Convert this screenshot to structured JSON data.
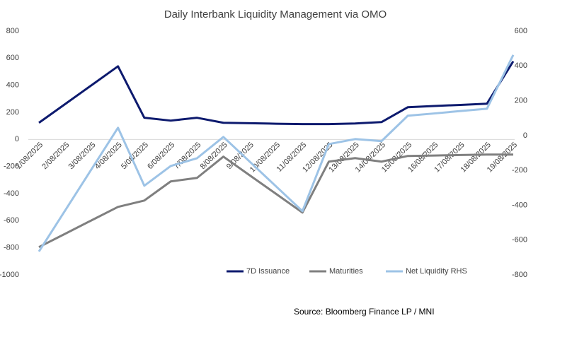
{
  "chart_data": {
    "type": "line",
    "title": "Daily Interbank Liquidity Management via OMO",
    "source": "Source: Bloomberg Finance LP / MNI",
    "categories": [
      "1/08/2025",
      "2/08/2025",
      "3/08/2025",
      "4/08/2025",
      "5/08/2025",
      "6/08/2025",
      "7/08/2025",
      "8/08/2025",
      "9/08/2025",
      "10/08/2025",
      "11/08/2025",
      "12/08/2025",
      "13/08/2025",
      "14/08/2025",
      "15/08/2025",
      "16/08/2025",
      "17/08/2025",
      "18/08/2025",
      "19/08/2025"
    ],
    "series": [
      {
        "name": "7D Issuance",
        "color": "#0d1a6e",
        "axis": "y",
        "values": [
          123,
          262,
          401,
          540,
          160,
          139,
          160,
          123,
          120,
          116,
          113,
          113,
          118,
          128,
          238,
          247,
          255,
          264,
          577
        ]
      },
      {
        "name": "Maturities",
        "color": "#7f7f7f",
        "axis": "y",
        "values": [
          -795,
          -696,
          -597,
          -498,
          -451,
          -310,
          -284,
          -127,
          -265,
          -402,
          -540,
          -164,
          -138,
          -164,
          -122,
          -119,
          -115,
          -112,
          -112
        ]
      },
      {
        "name": "Net Liquidity RHS",
        "color": "#9dc3e6",
        "axis": "y2",
        "values": [
          -666,
          -429,
          -192,
          45,
          -288,
          -175,
          -130,
          -8,
          -150,
          -292,
          -434,
          -49,
          -20,
          -32,
          114,
          127,
          141,
          154,
          463
        ]
      }
    ],
    "ylim": [
      -1000,
      800
    ],
    "yticks": [
      -1000,
      -800,
      -600,
      -400,
      -200,
      0,
      200,
      400,
      600,
      800
    ],
    "y2lim": [
      -800,
      600
    ],
    "y2ticks": [
      -800,
      -600,
      -400,
      -200,
      0,
      200,
      400,
      600
    ],
    "grid": false,
    "legend": "bottom"
  }
}
